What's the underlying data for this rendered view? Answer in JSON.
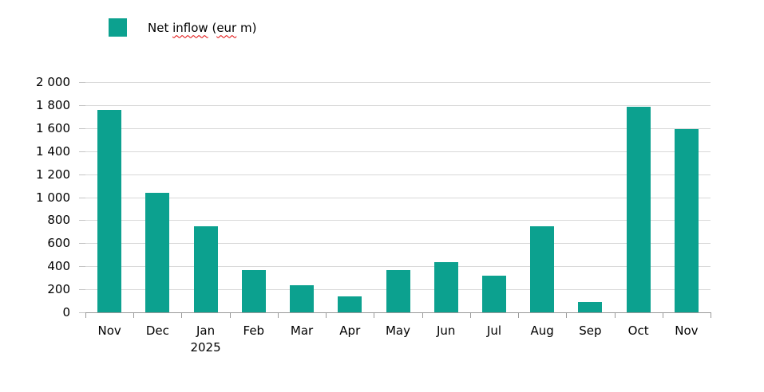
{
  "legend": {
    "label": "Net inflow (eur m)",
    "segments": [
      {
        "text": "Net ",
        "misspelled": false
      },
      {
        "text": "inflow",
        "misspelled": true
      },
      {
        "text": " (",
        "misspelled": false
      },
      {
        "text": "eur",
        "misspelled": true
      },
      {
        "text": " m)",
        "misspelled": false
      }
    ]
  },
  "chart_data": {
    "type": "bar",
    "title": "",
    "series": [
      {
        "name": "Net inflow (eur m)",
        "values": [
          1755,
          1035,
          750,
          370,
          235,
          135,
          370,
          435,
          315,
          745,
          90,
          1785,
          1590
        ]
      }
    ],
    "categories": [
      {
        "label": "Nov",
        "sublabel": ""
      },
      {
        "label": "Dec",
        "sublabel": ""
      },
      {
        "label": "Jan",
        "sublabel": "2025"
      },
      {
        "label": "Feb",
        "sublabel": ""
      },
      {
        "label": "Mar",
        "sublabel": ""
      },
      {
        "label": "Apr",
        "sublabel": ""
      },
      {
        "label": "May",
        "sublabel": ""
      },
      {
        "label": "Jun",
        "sublabel": ""
      },
      {
        "label": "Jul",
        "sublabel": ""
      },
      {
        "label": "Aug",
        "sublabel": ""
      },
      {
        "label": "Sep",
        "sublabel": ""
      },
      {
        "label": "Oct",
        "sublabel": ""
      },
      {
        "label": "Nov",
        "sublabel": ""
      }
    ],
    "xlabel": "",
    "ylabel": "",
    "ylim": [
      0,
      2000
    ],
    "ytick_interval": 200,
    "ytick_labels": [
      "0",
      "200",
      "400",
      "600",
      "800",
      "1 000",
      "1 200",
      "1 400",
      "1 600",
      "1 800",
      "2 000"
    ],
    "grid": true,
    "legend_position": "top-left"
  },
  "colors": {
    "bar": "#0CA18F",
    "gridline": "#D9D9D9",
    "axis": "#9A9A9A",
    "ytick": "#C4C4C4",
    "text": "#000000",
    "spellcheck": "#E00000"
  }
}
